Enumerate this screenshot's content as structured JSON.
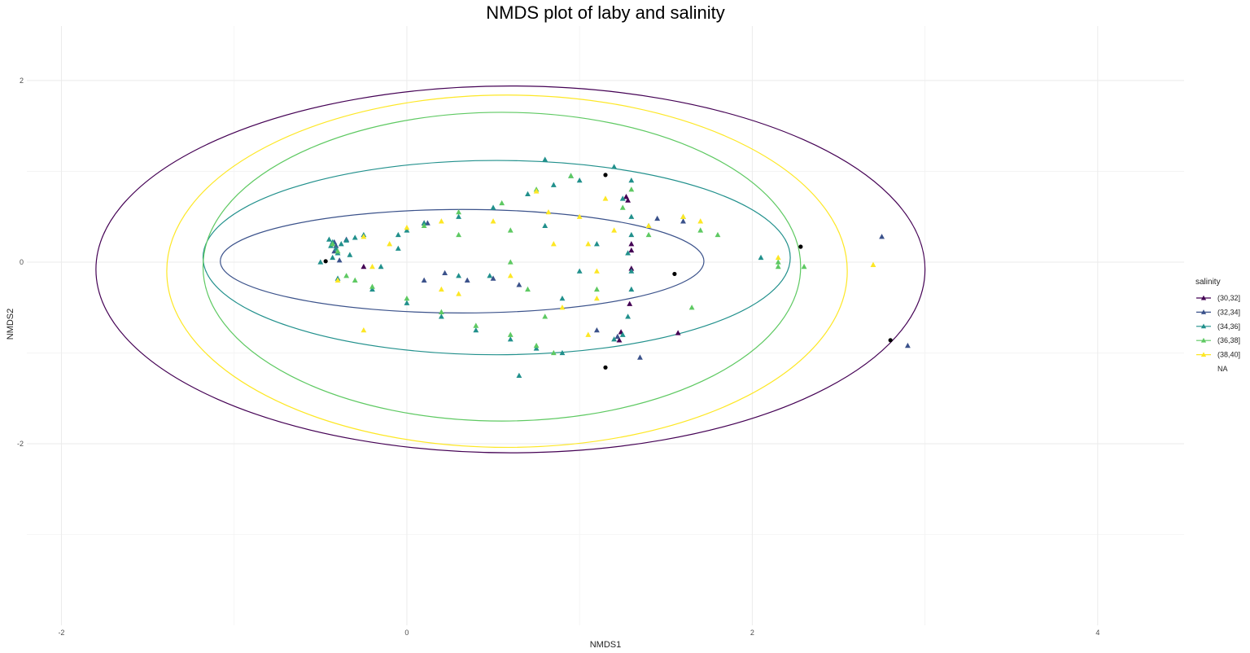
{
  "chart_data": {
    "type": "scatter",
    "title": "NMDS plot of laby and salinity",
    "xlabel": "NMDS1",
    "ylabel": "NMDS2",
    "xlim": [
      -2.2,
      4.5
    ],
    "ylim": [
      -4.0,
      2.6
    ],
    "x_ticks": [
      -2,
      0,
      2,
      4
    ],
    "y_ticks": [
      -2,
      0,
      2
    ],
    "x_tick_labels": [
      "-2",
      "0",
      "2",
      "4"
    ],
    "y_tick_labels": [
      "-2",
      "0",
      "2"
    ],
    "grid": true,
    "legend": {
      "title": "salinity",
      "position": "right",
      "entries": [
        "(30,32]",
        "(32,34]",
        "(34,36]",
        "(36,38]",
        "(38,40]",
        "NA"
      ]
    },
    "series": [
      {
        "name": "(30,32]",
        "color": "#440154",
        "marker": "triangle",
        "points": [
          [
            -0.25,
            -0.05
          ],
          [
            0.1,
            0.43
          ],
          [
            1.23,
            -0.86
          ],
          [
            1.24,
            -0.77
          ],
          [
            1.27,
            0.72
          ],
          [
            1.28,
            0.68
          ],
          [
            1.3,
            0.2
          ],
          [
            1.3,
            0.13
          ],
          [
            1.3,
            -0.07
          ],
          [
            1.29,
            -0.46
          ],
          [
            1.57,
            -0.78
          ]
        ],
        "ellipse": {
          "cx": 0.6,
          "cy": -0.08,
          "rx": 2.4,
          "ry": 2.02
        }
      },
      {
        "name": "(32,34]",
        "color": "#3b528b",
        "marker": "triangle",
        "points": [
          [
            -0.42,
            0.22
          ],
          [
            -0.41,
            0.18
          ],
          [
            -0.42,
            0.12
          ],
          [
            -0.39,
            0.02
          ],
          [
            -0.35,
            0.25
          ],
          [
            0.12,
            0.43
          ],
          [
            0.35,
            -0.2
          ],
          [
            0.5,
            -0.18
          ],
          [
            1.35,
            -1.05
          ],
          [
            1.45,
            0.48
          ],
          [
            1.22,
            -0.82
          ],
          [
            2.75,
            0.28
          ],
          [
            2.9,
            -0.92
          ],
          [
            1.6,
            0.45
          ],
          [
            1.1,
            -0.75
          ],
          [
            0.65,
            -0.25
          ],
          [
            0.22,
            -0.12
          ],
          [
            0.1,
            -0.2
          ]
        ],
        "ellipse": {
          "cx": 0.32,
          "cy": 0.01,
          "rx": 1.4,
          "ry": 0.57
        }
      },
      {
        "name": "(34,36]",
        "color": "#21908c",
        "marker": "triangle",
        "points": [
          [
            -0.45,
            0.25
          ],
          [
            -0.43,
            0.22
          ],
          [
            -0.44,
            0.18
          ],
          [
            -0.41,
            0.15
          ],
          [
            -0.4,
            0.1
          ],
          [
            -0.38,
            0.2
          ],
          [
            -0.35,
            0.24
          ],
          [
            -0.43,
            0.05
          ],
          [
            -0.33,
            0.08
          ],
          [
            -0.3,
            0.27
          ],
          [
            -0.25,
            0.3
          ],
          [
            -0.05,
            0.3
          ],
          [
            0.0,
            0.35
          ],
          [
            0.1,
            0.43
          ],
          [
            0.3,
            0.5
          ],
          [
            0.5,
            0.6
          ],
          [
            0.7,
            0.75
          ],
          [
            0.85,
            0.85
          ],
          [
            0.95,
            0.95
          ],
          [
            1.0,
            0.9
          ],
          [
            0.8,
            1.13
          ],
          [
            1.2,
            1.05
          ],
          [
            1.3,
            0.9
          ],
          [
            1.25,
            0.7
          ],
          [
            1.3,
            0.5
          ],
          [
            1.3,
            0.3
          ],
          [
            1.28,
            0.1
          ],
          [
            1.3,
            -0.1
          ],
          [
            1.3,
            -0.3
          ],
          [
            1.28,
            -0.6
          ],
          [
            1.25,
            -0.8
          ],
          [
            1.2,
            -0.85
          ],
          [
            0.9,
            -1.0
          ],
          [
            0.75,
            -0.95
          ],
          [
            0.6,
            -0.85
          ],
          [
            0.4,
            -0.75
          ],
          [
            0.2,
            -0.6
          ],
          [
            0.0,
            -0.45
          ],
          [
            -0.2,
            -0.3
          ],
          [
            -0.4,
            -0.18
          ],
          [
            -0.5,
            0.0
          ],
          [
            0.65,
            -1.25
          ],
          [
            0.8,
            0.4
          ],
          [
            0.9,
            -0.4
          ],
          [
            1.0,
            -0.1
          ],
          [
            1.1,
            0.2
          ],
          [
            1.4,
            0.4
          ],
          [
            0.3,
            -0.15
          ],
          [
            0.48,
            -0.15
          ],
          [
            2.05,
            0.05
          ],
          [
            -0.15,
            -0.05
          ],
          [
            -0.05,
            0.15
          ]
        ],
        "ellipse": {
          "cx": 0.52,
          "cy": 0.05,
          "rx": 1.7,
          "ry": 1.07
        }
      },
      {
        "name": "(36,38]",
        "color": "#5ec962",
        "marker": "triangle",
        "points": [
          [
            -0.43,
            0.2
          ],
          [
            -0.4,
            0.12
          ],
          [
            -0.35,
            -0.15
          ],
          [
            -0.3,
            -0.2
          ],
          [
            -0.2,
            -0.27
          ],
          [
            0.0,
            -0.4
          ],
          [
            0.2,
            -0.55
          ],
          [
            0.4,
            -0.7
          ],
          [
            0.6,
            -0.8
          ],
          [
            0.75,
            -0.92
          ],
          [
            0.85,
            -1.0
          ],
          [
            0.1,
            0.4
          ],
          [
            0.3,
            0.55
          ],
          [
            0.55,
            0.65
          ],
          [
            0.75,
            0.8
          ],
          [
            0.95,
            0.95
          ],
          [
            1.25,
            0.6
          ],
          [
            1.4,
            0.3
          ],
          [
            1.6,
            0.5
          ],
          [
            1.7,
            0.35
          ],
          [
            1.8,
            0.3
          ],
          [
            1.65,
            -0.5
          ],
          [
            2.15,
            0.0
          ],
          [
            2.15,
            -0.05
          ],
          [
            2.3,
            -0.05
          ],
          [
            1.1,
            -0.3
          ],
          [
            0.6,
            0.0
          ],
          [
            0.7,
            -0.3
          ],
          [
            0.3,
            0.3
          ],
          [
            0.6,
            0.35
          ],
          [
            0.8,
            -0.6
          ],
          [
            1.3,
            0.8
          ]
        ],
        "ellipse": {
          "cx": 0.55,
          "cy": -0.05,
          "rx": 1.73,
          "ry": 1.7
        }
      },
      {
        "name": "(38,40]",
        "color": "#fde725",
        "marker": "triangle",
        "points": [
          [
            -0.4,
            -0.2
          ],
          [
            -0.25,
            0.28
          ],
          [
            -0.2,
            -0.05
          ],
          [
            -0.25,
            -0.75
          ],
          [
            -0.1,
            0.2
          ],
          [
            0.2,
            0.45
          ],
          [
            0.3,
            -0.35
          ],
          [
            0.2,
            -0.3
          ],
          [
            0.5,
            0.45
          ],
          [
            0.6,
            -0.15
          ],
          [
            0.75,
            0.78
          ],
          [
            0.82,
            0.55
          ],
          [
            0.85,
            0.2
          ],
          [
            0.9,
            -0.5
          ],
          [
            1.0,
            0.5
          ],
          [
            1.05,
            0.2
          ],
          [
            1.1,
            -0.1
          ],
          [
            1.15,
            0.7
          ],
          [
            1.2,
            0.35
          ],
          [
            1.1,
            -0.4
          ],
          [
            1.05,
            -0.8
          ],
          [
            1.4,
            0.4
          ],
          [
            1.6,
            0.5
          ],
          [
            1.7,
            0.45
          ],
          [
            2.15,
            0.05
          ],
          [
            2.7,
            -0.03
          ],
          [
            0.0,
            0.38
          ]
        ],
        "ellipse": {
          "cx": 0.58,
          "cy": -0.1,
          "rx": 1.97,
          "ry": 1.94
        }
      },
      {
        "name": "NA",
        "color": "#000000",
        "marker": "circle",
        "points": [
          [
            -0.47,
            0.01
          ],
          [
            1.15,
            0.96
          ],
          [
            1.55,
            -0.13
          ],
          [
            2.28,
            0.17
          ],
          [
            2.8,
            -0.86
          ],
          [
            1.15,
            -1.16
          ]
        ],
        "ellipse": null
      }
    ]
  }
}
